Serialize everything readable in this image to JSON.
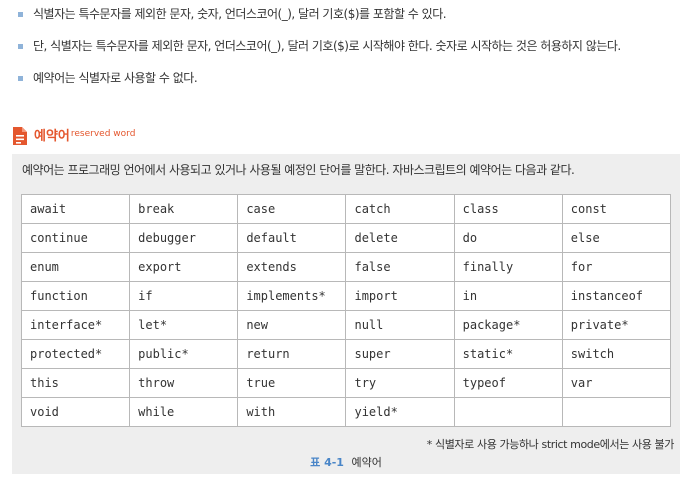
{
  "bullets": [
    "식별자는 특수문자를 제외한 문자, 숫자, 언더스코어(_), 달러 기호($)를 포함할 수 있다.",
    "단, 식별자는 특수문자를 제외한 문자, 언더스코어(_), 달러 기호($)로 시작해야 한다. 숫자로 시작하는 것은 허용하지 않는다.",
    "예약어는 식별자로 사용할 수 없다."
  ],
  "section": {
    "title": "예약어",
    "title_sup": "reserved word",
    "icon": "document-icon",
    "accent_color": "#e4572e"
  },
  "intro": "예약어는 프로그래밍 언어에서 사용되고 있거나 사용될 예정인 단어를 말한다. 자바스크립트의 예약어는 다음과 같다.",
  "table": {
    "rows": [
      [
        "await",
        "break",
        "case",
        "catch",
        "class",
        "const"
      ],
      [
        "continue",
        "debugger",
        "default",
        "delete",
        "do",
        "else"
      ],
      [
        "enum",
        "export",
        "extends",
        "false",
        "finally",
        "for"
      ],
      [
        "function",
        "if",
        "implements*",
        "import",
        "in",
        "instanceof"
      ],
      [
        "interface*",
        "let*",
        "new",
        "null",
        "package*",
        "private*"
      ],
      [
        "protected*",
        "public*",
        "return",
        "super",
        "static*",
        "switch"
      ],
      [
        "this",
        "throw",
        "true",
        "try",
        "typeof",
        "var"
      ],
      [
        "void",
        "while",
        "with",
        "yield*",
        "",
        ""
      ]
    ]
  },
  "note": "* 식별자로 사용 가능하나 strict mode에서는 사용 불가",
  "caption": {
    "label": "표 4-1",
    "text": "예약어",
    "label_color": "#4a86c8"
  }
}
